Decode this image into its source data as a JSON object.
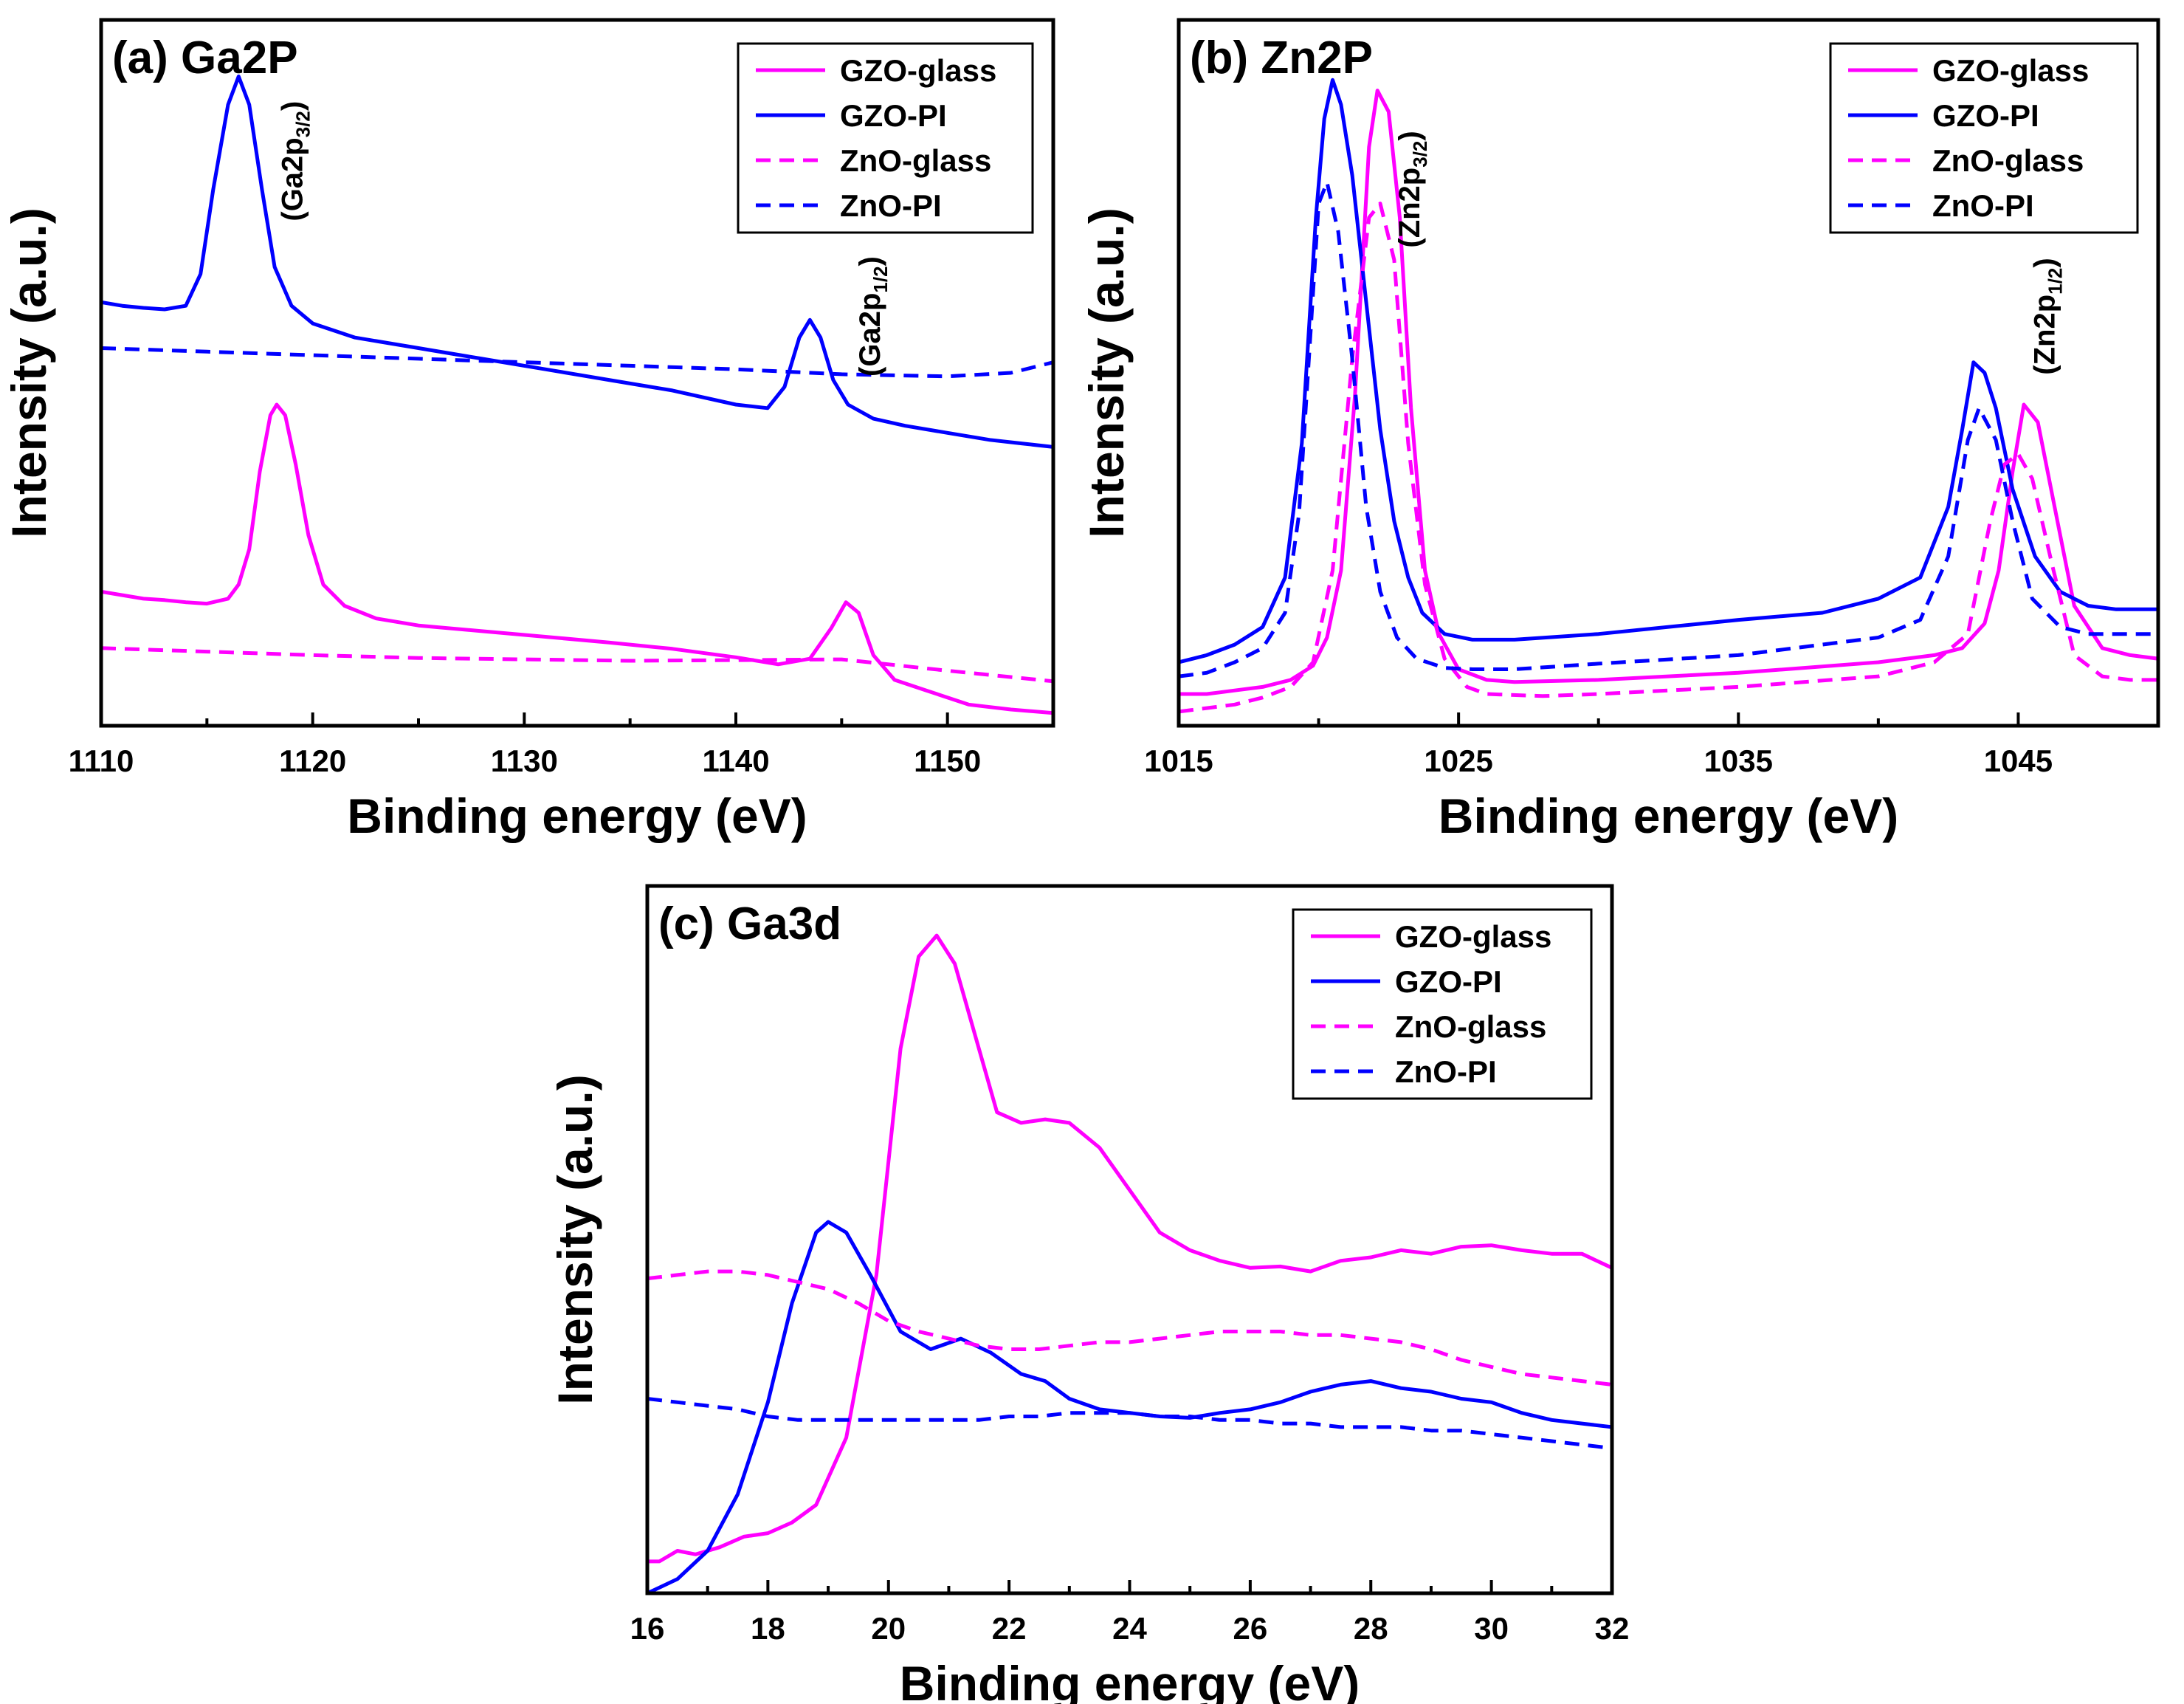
{
  "colors": {
    "gzo": "#ff00ff",
    "zno": "#0000ff",
    "axis": "#000000"
  },
  "legend": [
    {
      "label": "GZO-glass",
      "color": "#ff00ff",
      "dash": false
    },
    {
      "label": "GZO-PI",
      "color": "#0000ff",
      "dash": false
    },
    {
      "label": "ZnO-glass",
      "color": "#ff00ff",
      "dash": true
    },
    {
      "label": "ZnO-PI",
      "color": "#0000ff",
      "dash": true
    }
  ],
  "chart_data": [
    {
      "type": "line",
      "title": "(a) Ga2P",
      "xlabel": "Binding energy (eV)",
      "ylabel": "Intensity (a.u.)",
      "xlim": [
        1110,
        1155
      ],
      "ylim": [
        0,
        100
      ],
      "xticks": [
        1110,
        1120,
        1130,
        1140,
        1150
      ],
      "y_ticks_shown": false,
      "legend_position": "top-right",
      "annotations": [
        {
          "text": "(Ga2p",
          "sub": "3/2",
          "close": ")",
          "x": 1119.5,
          "y": 80
        },
        {
          "text": "(Ga2p",
          "sub": "1/2",
          "close": ")",
          "x": 1146.8,
          "y": 58
        }
      ],
      "series": [
        {
          "name": "GZO-glass",
          "color": "#ff00ff",
          "dash": false,
          "x": [
            1110,
            1111,
            1112,
            1113,
            1114,
            1115,
            1116,
            1116.5,
            1117,
            1117.5,
            1118,
            1118.3,
            1118.7,
            1119.2,
            1119.8,
            1120.5,
            1121.5,
            1123,
            1125,
            1128,
            1131,
            1134,
            1137,
            1140,
            1142,
            1143.5,
            1144.5,
            1145.2,
            1145.8,
            1146.5,
            1147.5,
            1149,
            1151,
            1153,
            1155
          ],
          "y": [
            19,
            18.5,
            18,
            17.8,
            17.5,
            17.3,
            18,
            20,
            25,
            36,
            44,
            45.5,
            44,
            37,
            27,
            20,
            17,
            15.2,
            14.2,
            13.4,
            12.6,
            11.8,
            10.9,
            9.7,
            8.7,
            9.5,
            13.8,
            17.5,
            16,
            10,
            6.5,
            5,
            3,
            2.3,
            1.8
          ]
        },
        {
          "name": "GZO-PI",
          "color": "#0000ff",
          "dash": false,
          "x": [
            1110,
            1111,
            1112,
            1113,
            1114,
            1114.7,
            1115.3,
            1116,
            1116.5,
            1117,
            1117.6,
            1118.2,
            1119,
            1120,
            1122,
            1125,
            1128,
            1131,
            1134,
            1137,
            1140,
            1141.5,
            1142.3,
            1143,
            1143.5,
            1144,
            1144.6,
            1145.3,
            1146.5,
            1148,
            1150,
            1152,
            1153.5,
            1155
          ],
          "y": [
            60,
            59.5,
            59.2,
            59,
            59.5,
            64,
            76,
            88,
            92,
            88,
            76,
            65,
            59.5,
            57,
            55,
            53.5,
            52,
            50.5,
            49,
            47.5,
            45.5,
            45,
            48,
            55,
            57.5,
            55,
            49,
            45.5,
            43.5,
            42.5,
            41.5,
            40.5,
            40,
            39.5
          ]
        },
        {
          "name": "ZnO-glass",
          "color": "#ff00ff",
          "dash": true,
          "x": [
            1110,
            1115,
            1120,
            1125,
            1130,
            1135,
            1140,
            1145,
            1150,
            1155
          ],
          "y": [
            11,
            10.5,
            10,
            9.6,
            9.4,
            9.2,
            9.3,
            9.4,
            7.8,
            6.3
          ]
        },
        {
          "name": "ZnO-PI",
          "color": "#0000ff",
          "dash": true,
          "x": [
            1110,
            1115,
            1120,
            1125,
            1130,
            1135,
            1140,
            1145,
            1150,
            1153,
            1155
          ],
          "y": [
            53.5,
            53,
            52.5,
            52,
            51.5,
            51,
            50.5,
            49.8,
            49.5,
            50,
            51.5
          ]
        }
      ]
    },
    {
      "type": "line",
      "title": "(b) Zn2P",
      "xlabel": "Binding energy (eV)",
      "ylabel": "Intensity (a.u.)",
      "xlim": [
        1015,
        1050
      ],
      "ylim": [
        0,
        100
      ],
      "xticks": [
        1015,
        1025,
        1035,
        1045
      ],
      "y_ticks_shown": false,
      "legend_position": "top-right",
      "annotations": [
        {
          "text": "(Zn2p",
          "sub": "3/2",
          "close": ")",
          "x": 1023.6,
          "y": 76
        },
        {
          "text": "(Zn2p",
          "sub": "1/2",
          "close": ")",
          "x": 1046.3,
          "y": 58
        }
      ],
      "series": [
        {
          "name": "GZO-glass",
          "color": "#ff00ff",
          "dash": false,
          "x": [
            1015,
            1016,
            1017,
            1018,
            1019,
            1019.8,
            1020.3,
            1020.8,
            1021.3,
            1021.8,
            1022.1,
            1022.5,
            1022.9,
            1023.3,
            1023.8,
            1024.3,
            1025,
            1026,
            1027,
            1030,
            1035,
            1040,
            1042,
            1043,
            1043.8,
            1044.3,
            1044.8,
            1045.2,
            1045.7,
            1046.3,
            1047,
            1048,
            1049,
            1050
          ],
          "y": [
            4.5,
            4.5,
            5,
            5.5,
            6.5,
            8.5,
            12.5,
            22,
            47,
            82,
            90,
            87,
            72,
            45,
            22,
            13,
            8,
            6.5,
            6.2,
            6.5,
            7.5,
            9,
            10,
            11,
            14.5,
            22,
            36,
            45.5,
            43,
            31,
            17,
            11,
            10,
            9.5
          ]
        },
        {
          "name": "GZO-PI",
          "color": "#0000ff",
          "dash": false,
          "x": [
            1015,
            1016,
            1017,
            1018,
            1018.8,
            1019.4,
            1019.9,
            1020.2,
            1020.5,
            1020.8,
            1021.2,
            1021.7,
            1022.2,
            1022.7,
            1023.2,
            1023.7,
            1024.5,
            1025.5,
            1027,
            1030,
            1035,
            1038,
            1040,
            1041.5,
            1042.5,
            1043,
            1043.4,
            1043.8,
            1044.2,
            1044.8,
            1045.6,
            1046.5,
            1047.5,
            1048.5,
            1050
          ],
          "y": [
            9,
            10,
            11.5,
            14,
            21,
            40,
            72,
            86,
            91.5,
            88,
            78,
            60,
            42,
            29,
            21,
            16,
            13,
            12.2,
            12.2,
            13,
            15,
            16,
            18,
            21,
            31,
            42,
            51.5,
            50,
            45,
            33.5,
            24,
            19,
            17,
            16.5,
            16.5
          ]
        },
        {
          "name": "ZnO-glass",
          "color": "#ff00ff",
          "dash": true,
          "x": [
            1015,
            1016,
            1017,
            1018,
            1019,
            1019.8,
            1020.5,
            1021.2,
            1021.8,
            1022.2,
            1022.7,
            1023.2,
            1023.8,
            1024.5,
            1025.3,
            1026,
            1028,
            1030,
            1035,
            1040,
            1042,
            1043.2,
            1044,
            1044.5,
            1045,
            1045.5,
            1046.2,
            1047,
            1048,
            1049,
            1050
          ],
          "y": [
            2,
            2.5,
            3,
            4,
            5.5,
            9,
            22,
            52,
            72,
            74,
            66,
            40,
            20,
            9.5,
            5.5,
            4.5,
            4.2,
            4.5,
            5.5,
            7,
            9,
            13,
            29,
            37,
            38.5,
            35,
            23,
            10,
            7,
            6.5,
            6.5
          ]
        },
        {
          "name": "ZnO-PI",
          "color": "#0000ff",
          "dash": true,
          "x": [
            1015,
            1016,
            1017,
            1018,
            1018.8,
            1019.3,
            1019.7,
            1020,
            1020.3,
            1020.7,
            1021.2,
            1021.7,
            1022.2,
            1022.8,
            1023.5,
            1024.5,
            1025.5,
            1027,
            1030,
            1035,
            1040,
            1041.5,
            1042.5,
            1043.2,
            1043.6,
            1044.2,
            1044.8,
            1045.5,
            1046.5,
            1047.5,
            1049,
            1050
          ],
          "y": [
            7,
            7.5,
            9,
            11,
            16,
            30,
            55,
            74,
            77,
            70,
            52,
            31,
            19,
            12.5,
            9.5,
            8.2,
            8,
            8,
            8.8,
            10,
            12.5,
            15,
            24,
            40.5,
            45,
            40.5,
            29,
            18,
            14,
            13,
            13,
            13
          ]
        }
      ]
    },
    {
      "type": "line",
      "title": "(c) Ga3d",
      "xlabel": "Binding energy (eV)",
      "ylabel": "Intensity (a.u.)",
      "xlim": [
        16,
        32
      ],
      "ylim": [
        0,
        100
      ],
      "xticks": [
        16,
        18,
        20,
        22,
        24,
        26,
        28,
        30,
        32
      ],
      "y_ticks_shown": false,
      "legend_position": "top-right",
      "series": [
        {
          "name": "GZO-glass",
          "color": "#ff00ff",
          "dash": false,
          "x": [
            16,
            16.2,
            16.5,
            16.8,
            17.2,
            17.6,
            18,
            18.4,
            18.8,
            19.3,
            19.8,
            20.2,
            20.5,
            20.8,
            21.1,
            21.4,
            21.8,
            22.2,
            22.6,
            23,
            23.5,
            24,
            24.5,
            25,
            25.5,
            26,
            26.5,
            27,
            27.5,
            28,
            28.5,
            29,
            29.5,
            30,
            30.5,
            31,
            31.5,
            32
          ],
          "y": [
            4.5,
            4.5,
            6,
            5.5,
            6.5,
            8,
            8.5,
            10,
            12.5,
            22,
            45,
            77,
            90,
            93,
            89,
            80,
            68,
            66.5,
            67,
            66.5,
            63,
            57,
            51,
            48.5,
            47,
            46,
            46.2,
            45.5,
            47,
            47.5,
            48.5,
            48,
            49,
            49.2,
            48.5,
            48,
            48,
            46
          ]
        },
        {
          "name": "GZO-PI",
          "color": "#0000ff",
          "dash": false,
          "x": [
            16,
            16.5,
            17,
            17.5,
            18,
            18.4,
            18.8,
            19,
            19.3,
            19.7,
            20.2,
            20.7,
            21.2,
            21.7,
            22.2,
            22.6,
            23,
            23.5,
            24,
            24.5,
            25,
            25.5,
            26,
            26.5,
            27,
            27.5,
            28,
            28.5,
            29,
            29.5,
            30,
            30.5,
            31,
            31.5,
            32
          ],
          "y": [
            0,
            2,
            6,
            14,
            27,
            41,
            51,
            52.5,
            51,
            45,
            37,
            34.5,
            36,
            34,
            31,
            30,
            27.5,
            26,
            25.5,
            25,
            24.8,
            25.5,
            26,
            27,
            28.5,
            29.5,
            30,
            29,
            28.5,
            27.5,
            27,
            25.5,
            24.5,
            24,
            23.5
          ]
        },
        {
          "name": "ZnO-glass",
          "color": "#ff00ff",
          "dash": true,
          "x": [
            16,
            16.5,
            17,
            17.5,
            18,
            18.5,
            19,
            19.5,
            20,
            20.5,
            21,
            21.5,
            22,
            22.5,
            23,
            23.5,
            24,
            24.5,
            25,
            25.5,
            26,
            26.5,
            27,
            27.5,
            28,
            28.5,
            29,
            29.5,
            30,
            30.5,
            31,
            31.5,
            32
          ],
          "y": [
            44.5,
            45,
            45.5,
            45.5,
            45,
            44,
            43,
            41,
            38.5,
            37,
            36,
            35,
            34.5,
            34.5,
            35,
            35.5,
            35.5,
            36,
            36.5,
            37,
            37,
            37,
            36.5,
            36.5,
            36,
            35.5,
            34.5,
            33,
            32,
            31,
            30.5,
            30,
            29.5
          ]
        },
        {
          "name": "ZnO-PI",
          "color": "#0000ff",
          "dash": true,
          "x": [
            16,
            16.5,
            17,
            17.5,
            18,
            18.5,
            19,
            19.5,
            20,
            20.5,
            21,
            21.5,
            22,
            22.5,
            23,
            23.5,
            24,
            24.5,
            25,
            25.5,
            26,
            26.5,
            27,
            27.5,
            28,
            28.5,
            29,
            29.5,
            30,
            30.5,
            31,
            31.5,
            32
          ],
          "y": [
            27.5,
            27,
            26.5,
            26,
            25,
            24.5,
            24.5,
            24.5,
            24.5,
            24.5,
            24.5,
            24.5,
            25,
            25,
            25.5,
            25.5,
            25.5,
            25,
            25,
            24.5,
            24.5,
            24,
            24,
            23.5,
            23.5,
            23.5,
            23,
            23,
            22.5,
            22,
            21.5,
            21,
            20.5
          ]
        }
      ]
    }
  ]
}
